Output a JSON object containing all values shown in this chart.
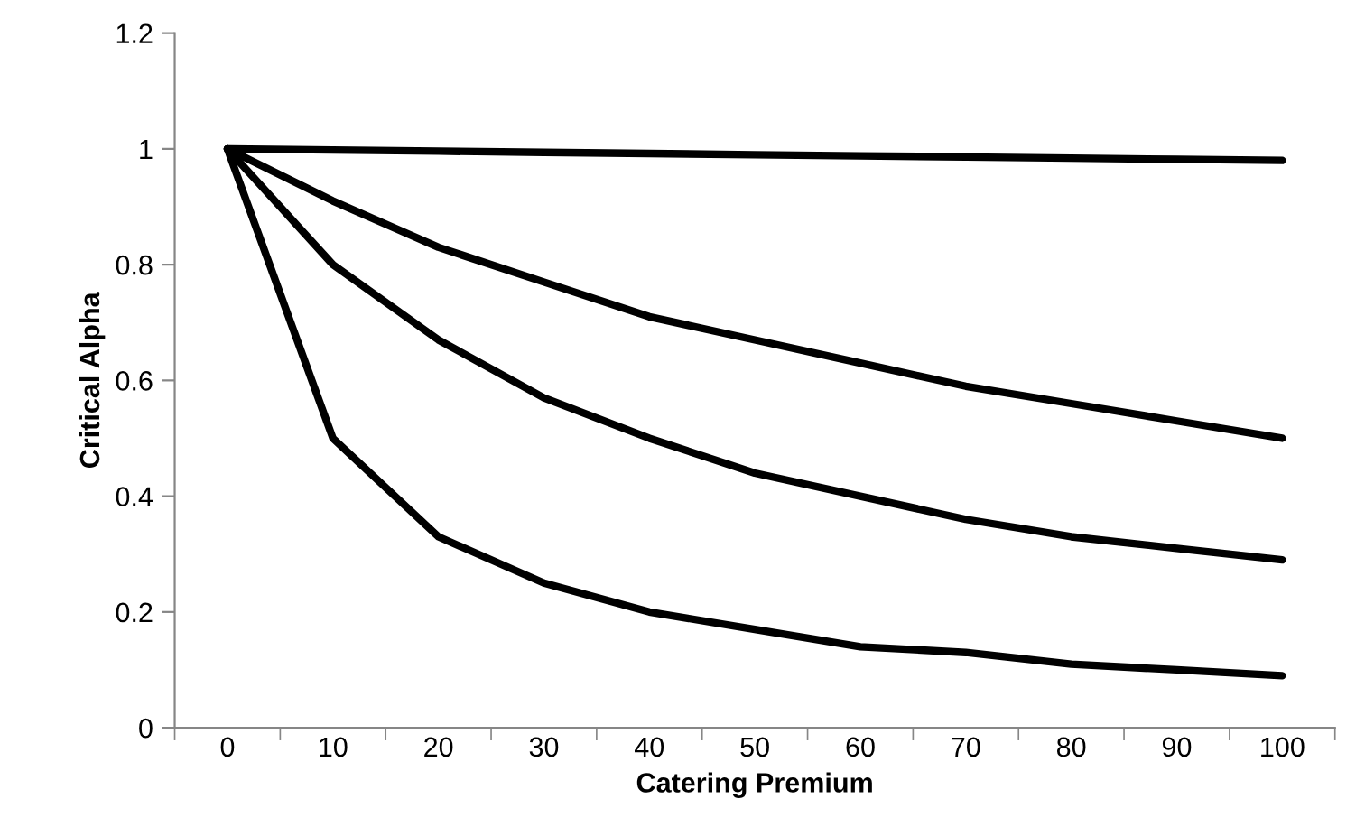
{
  "chart_data": {
    "type": "line",
    "xlabel": "Catering Premium",
    "ylabel": "Critical Alpha",
    "categories": [
      "0",
      "10",
      "20",
      "30",
      "40",
      "50",
      "60",
      "70",
      "80",
      "90",
      "100"
    ],
    "series": [
      {
        "color": "#000000",
        "values": [
          1,
          0.998,
          0.996,
          0.994,
          0.992,
          0.99,
          0.988,
          0.986,
          0.984,
          0.982,
          0.98
        ]
      },
      {
        "color": "#000000",
        "values": [
          1,
          0.91,
          0.83,
          0.77,
          0.71,
          0.67,
          0.63,
          0.59,
          0.56,
          0.53,
          0.5
        ]
      },
      {
        "color": "#000000",
        "values": [
          1,
          0.8,
          0.67,
          0.57,
          0.5,
          0.44,
          0.4,
          0.36,
          0.33,
          0.31,
          0.29
        ]
      },
      {
        "color": "#000000",
        "values": [
          1,
          0.5,
          0.33,
          0.25,
          0.2,
          0.17,
          0.14,
          0.13,
          0.11,
          0.1,
          0.09
        ]
      }
    ],
    "ylim": [
      0,
      1.2
    ],
    "yticks": [
      0,
      0.2,
      0.4,
      0.6,
      0.8,
      1,
      1.2
    ],
    "grid": false,
    "legend": false,
    "marker": "none",
    "line_style": "solid"
  }
}
